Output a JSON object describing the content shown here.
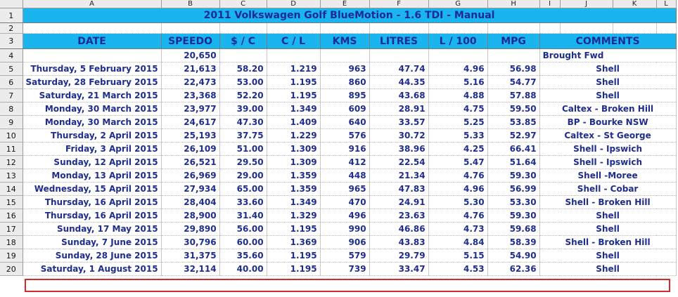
{
  "columns": [
    "A",
    "B",
    "C",
    "D",
    "E",
    "F",
    "G",
    "H",
    "I",
    "J",
    "K",
    "L"
  ],
  "title": "2011 Volkswagen Golf BlueMotion - 1.6 TDI - Manual",
  "headers": {
    "date": "DATE",
    "speedo": "SPEEDO",
    "cost": "$ / C",
    "cpl": "C / L",
    "kms": "KMS",
    "litres": "LITRES",
    "l100": "L / 100",
    "mpg": "MPG",
    "comments": "COMMENTS"
  },
  "brought_forward": {
    "speedo": "20,650",
    "comment": "Brought Fwd"
  },
  "rows": [
    {
      "date": "Thursday, 5 February 2015",
      "speedo": "21,613",
      "cost": "58.20",
      "cpl": "1.219",
      "kms": "963",
      "litres": "47.74",
      "l100": "4.96",
      "mpg": "56.98",
      "comment": "Shell"
    },
    {
      "date": "Saturday, 28 February 2015",
      "speedo": "22,473",
      "cost": "53.00",
      "cpl": "1.195",
      "kms": "860",
      "litres": "44.35",
      "l100": "5.16",
      "mpg": "54.77",
      "comment": "Shell"
    },
    {
      "date": "Saturday, 21 March 2015",
      "speedo": "23,368",
      "cost": "52.20",
      "cpl": "1.195",
      "kms": "895",
      "litres": "43.68",
      "l100": "4.88",
      "mpg": "57.88",
      "comment": "Shell"
    },
    {
      "date": "Monday, 30 March 2015",
      "speedo": "23,977",
      "cost": "39.00",
      "cpl": "1.349",
      "kms": "609",
      "litres": "28.91",
      "l100": "4.75",
      "mpg": "59.50",
      "comment": "Caltex - Broken Hill"
    },
    {
      "date": "Monday, 30 March 2015",
      "speedo": "24,617",
      "cost": "47.30",
      "cpl": "1.409",
      "kms": "640",
      "litres": "33.57",
      "l100": "5.25",
      "mpg": "53.85",
      "comment": "BP - Bourke NSW"
    },
    {
      "date": "Thursday, 2 April 2015",
      "speedo": "25,193",
      "cost": "37.75",
      "cpl": "1.229",
      "kms": "576",
      "litres": "30.72",
      "l100": "5.33",
      "mpg": "52.97",
      "comment": "Caltex - St George"
    },
    {
      "date": "Friday, 3 April 2015",
      "speedo": "26,109",
      "cost": "51.00",
      "cpl": "1.309",
      "kms": "916",
      "litres": "38.96",
      "l100": "4.25",
      "mpg": "66.41",
      "comment": "Shell - Ipswich"
    },
    {
      "date": "Sunday, 12 April 2015",
      "speedo": "26,521",
      "cost": "29.50",
      "cpl": "1.309",
      "kms": "412",
      "litres": "22.54",
      "l100": "5.47",
      "mpg": "51.64",
      "comment": "Shell - Ipswich"
    },
    {
      "date": "Monday, 13 April 2015",
      "speedo": "26,969",
      "cost": "29.00",
      "cpl": "1.359",
      "kms": "448",
      "litres": "21.34",
      "l100": "4.76",
      "mpg": "59.30",
      "comment": "Shell -Moree"
    },
    {
      "date": "Wednesday, 15 April 2015",
      "speedo": "27,934",
      "cost": "65.00",
      "cpl": "1.359",
      "kms": "965",
      "litres": "47.83",
      "l100": "4.96",
      "mpg": "56.99",
      "comment": "Shell - Cobar"
    },
    {
      "date": "Thursday, 16 April 2015",
      "speedo": "28,404",
      "cost": "33.60",
      "cpl": "1.349",
      "kms": "470",
      "litres": "24.91",
      "l100": "5.30",
      "mpg": "53.30",
      "comment": "Shell - Broken Hill"
    },
    {
      "date": "Thursday, 16 April 2015",
      "speedo": "28,900",
      "cost": "31.40",
      "cpl": "1.329",
      "kms": "496",
      "litres": "23.63",
      "l100": "4.76",
      "mpg": "59.30",
      "comment": "Shell"
    },
    {
      "date": "Sunday, 17 May 2015",
      "speedo": "29,890",
      "cost": "56.00",
      "cpl": "1.195",
      "kms": "990",
      "litres": "46.86",
      "l100": "4.73",
      "mpg": "59.68",
      "comment": "Shell"
    },
    {
      "date": "Sunday, 7 June 2015",
      "speedo": "30,796",
      "cost": "60.00",
      "cpl": "1.369",
      "kms": "906",
      "litres": "43.83",
      "l100": "4.84",
      "mpg": "58.39",
      "comment": "Shell - Broken Hill"
    },
    {
      "date": "Sunday, 28 June 2015",
      "speedo": "31,375",
      "cost": "35.60",
      "cpl": "1.195",
      "kms": "579",
      "litres": "29.79",
      "l100": "5.15",
      "mpg": "54.90",
      "comment": "Shell"
    },
    {
      "date": "Saturday, 1 August 2015",
      "speedo": "32,114",
      "cost": "40.00",
      "cpl": "1.195",
      "kms": "739",
      "litres": "33.47",
      "l100": "4.53",
      "mpg": "62.36",
      "comment": "Shell"
    }
  ],
  "highlight_color": "#d42a2a",
  "header_fill": "#1ab5ee",
  "text_color": "#1f2d8f"
}
